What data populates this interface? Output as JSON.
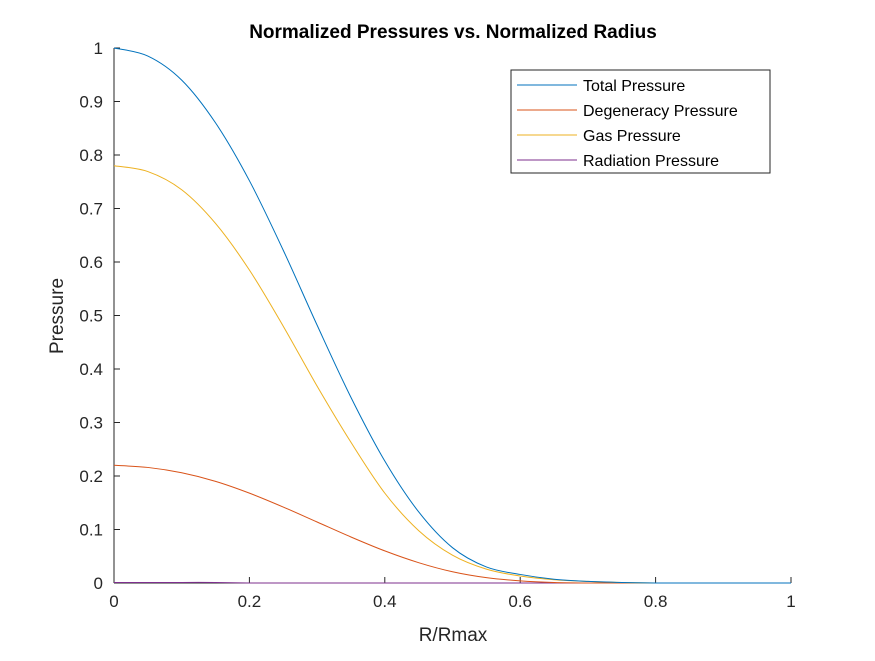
{
  "chart_data": {
    "type": "line",
    "title": "Normalized Pressures vs. Normalized Radius",
    "xlabel": "R/Rmax",
    "ylabel": "Pressure",
    "xlim": [
      0,
      1
    ],
    "ylim": [
      0,
      1
    ],
    "xticks": [
      "0",
      "0.2",
      "0.4",
      "0.6",
      "0.8",
      "1"
    ],
    "yticks": [
      "0",
      "0.1",
      "0.2",
      "0.3",
      "0.4",
      "0.5",
      "0.6",
      "0.7",
      "0.8",
      "0.9",
      "1"
    ],
    "grid": false,
    "legend_position": "top-right",
    "x": [
      0,
      0.05,
      0.1,
      0.15,
      0.2,
      0.25,
      0.3,
      0.35,
      0.4,
      0.45,
      0.5,
      0.55,
      0.6,
      0.65,
      0.7,
      0.75,
      0.8,
      0.85,
      0.9,
      0.95,
      1.0
    ],
    "series": [
      {
        "name": "Total Pressure",
        "color": "#0072BD",
        "values": [
          1.0,
          0.985,
          0.94,
          0.86,
          0.752,
          0.622,
          0.482,
          0.347,
          0.228,
          0.133,
          0.066,
          0.03,
          0.016,
          0.007,
          0.003,
          0.001,
          0.0,
          0.0,
          0.0,
          0.0,
          0.0
        ]
      },
      {
        "name": "Degeneracy Pressure",
        "color": "#D95319",
        "values": [
          0.22,
          0.216,
          0.206,
          0.19,
          0.168,
          0.142,
          0.114,
          0.086,
          0.06,
          0.038,
          0.021,
          0.01,
          0.004,
          0.001,
          0.0,
          0.0,
          0.0,
          0.0,
          0.0,
          0.0,
          0.0
        ]
      },
      {
        "name": "Gas Pressure",
        "color": "#EDB120",
        "values": [
          0.78,
          0.769,
          0.735,
          0.672,
          0.585,
          0.48,
          0.368,
          0.263,
          0.168,
          0.098,
          0.052,
          0.026,
          0.013,
          0.006,
          0.003,
          0.001,
          0.0,
          0.0,
          0.0,
          0.0,
          0.0
        ]
      },
      {
        "name": "Radiation Pressure",
        "color": "#7E2F8E",
        "values": [
          0.001,
          0.001,
          0.001,
          0.001,
          0.0,
          0.0,
          0.0,
          0.0,
          0.0,
          0.0,
          0.0,
          0.0,
          0.0,
          0.0,
          0.0,
          0.0,
          0.0,
          0.0,
          0.0,
          0.0,
          0.0
        ]
      }
    ]
  }
}
